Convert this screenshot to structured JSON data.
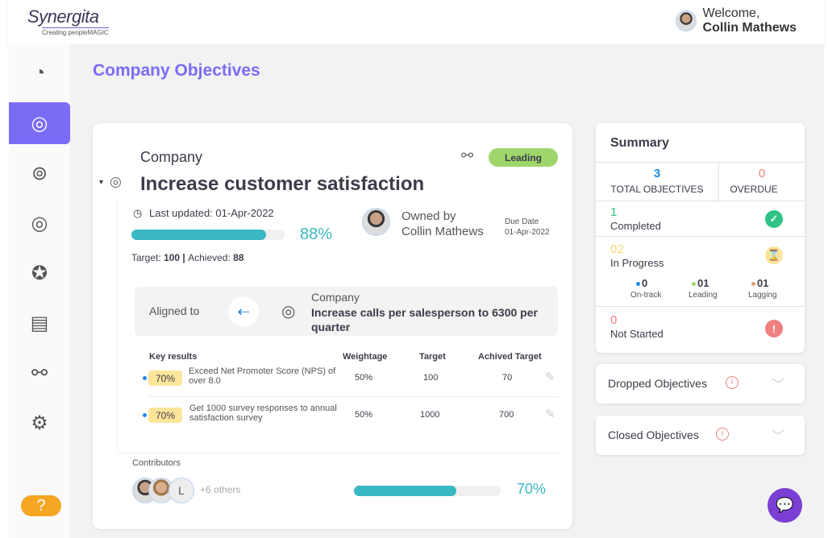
{
  "header": {
    "logo_name": "Synergita",
    "logo_tagline": "Creating peopleMAGIC",
    "welcome": "Welcome,",
    "user": "Collin Mathews"
  },
  "page_title": "Company Objectives",
  "objective": {
    "level": "Company",
    "title": "Increase customer satisfaction",
    "status": "Leading",
    "last_updated": "Last updated: 01-Apr-2022",
    "progress": 88,
    "progress_label": "88%",
    "target_label": "Target: ",
    "target": "100",
    "sep": " | ",
    "achieved_label": "Achieved: ",
    "achieved": "88",
    "owned_by": "Owned by",
    "owner": "Collin Mathews",
    "due_label": "Due Date",
    "due": "01-Apr-2022",
    "aligned": {
      "label": "Aligned to",
      "level": "Company",
      "title": "Increase calls per salesperson to 6300 per quarter"
    },
    "kr_headers": [
      "Key results",
      "Weightage",
      "Target",
      "Achived Target"
    ],
    "key_results": [
      {
        "pct": "70%",
        "name": "Exceed Net Promoter Score (NPS) of over 8.0",
        "weight": "50%",
        "target": "100",
        "achieved": "70"
      },
      {
        "pct": "70%",
        "name": "Get 1000 survey responses to annual satisfaction survey",
        "weight": "50%",
        "target": "1000",
        "achieved": "700"
      }
    ],
    "contributors_label": "Contributors",
    "contributor_initial": "L",
    "others": "+6 others",
    "contrib_progress": 70,
    "contrib_progress_label": "70%"
  },
  "summary": {
    "title": "Summary",
    "total": "3",
    "total_label": "TOTAL OBJECTIVES",
    "overdue": "0",
    "overdue_label": "OVERDUE",
    "completed": "1",
    "completed_label": "Completed",
    "in_progress": "02",
    "in_progress_label": "In Progress",
    "on_track": "0",
    "on_track_label": "On-track",
    "leading": "01",
    "leading_label": "Leading",
    "lagging": "01",
    "lagging_label": "Lagging",
    "not_started": "0",
    "not_started_label": "Not Started"
  },
  "dropped": "Dropped Objectives",
  "closed": "Closed Objectives",
  "colors": {
    "accent": "#7b6cf6",
    "teal": "#3ab8c3",
    "leading": "#9fd66b"
  }
}
